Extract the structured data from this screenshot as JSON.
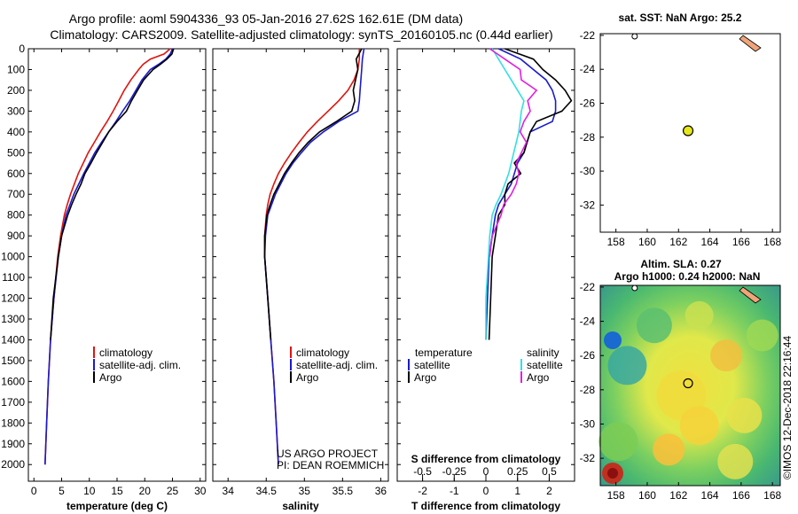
{
  "title_line1": "Argo profile: aoml 5904336_93 05-Jan-2016 27.62S 162.61E (DM data)",
  "title_line2": "Climatology: CARS2009. Satellite-adjusted climatology: synTS_20160105.nc (0.44d earlier)",
  "credit_line1": "US ARGO PROJECT",
  "credit_line2": "PI: DEAN ROEMMICH",
  "imos_label": "©IMOS 12-Dec-2018 22:16:44",
  "colors": {
    "climatology": "#e0140f",
    "satellite": "#1a1acc",
    "argo": "#000000",
    "cyan": "#33e0e0",
    "magenta": "#e020e0",
    "land": "#f0a47a",
    "marker": "#e6e61a"
  },
  "legend_tsal": [
    {
      "key": "climatology",
      "label": "climatology"
    },
    {
      "key": "satellite",
      "label": "satellite-adj. clim."
    },
    {
      "key": "argo",
      "label": "Argo"
    }
  ],
  "legend_diff": {
    "temp_heading": "temperature",
    "sal_heading": "salinity",
    "temp_items": [
      {
        "key": "satellite",
        "label": "satellite"
      },
      {
        "key": "argo",
        "label": "Argo"
      }
    ],
    "sal_items": [
      {
        "key": "cyan",
        "label": "satellite"
      },
      {
        "key": "magenta",
        "label": "Argo"
      }
    ]
  },
  "map_sst": {
    "title": "sat. SST: NaN Argo: 25.2",
    "lon_ticks": [
      158,
      160,
      162,
      164,
      166,
      168
    ],
    "lat_ticks": [
      -22,
      -24,
      -26,
      -28,
      -30,
      -32
    ],
    "profile_lon": 162.61,
    "profile_lat": -27.62
  },
  "map_sla": {
    "title_line1": "Altim. SLA: 0.27",
    "title_line2": "Argo h1000: 0.24 h2000: NaN",
    "lon_ticks": [
      158,
      160,
      162,
      164,
      166,
      168
    ],
    "lat_ticks": [
      -22,
      -24,
      -26,
      -28,
      -30,
      -32
    ],
    "profile_lon": 162.61,
    "profile_lat": -27.62
  },
  "chart_data": [
    {
      "type": "line",
      "xlabel": "temperature (deg C)",
      "ylabel": "",
      "xlim": [
        -1,
        31
      ],
      "ylim": [
        2080,
        0
      ],
      "xticks": [
        0,
        5,
        10,
        15,
        20,
        25,
        30
      ],
      "yticks": [
        0,
        100,
        200,
        300,
        400,
        500,
        600,
        700,
        800,
        900,
        1000,
        1100,
        1200,
        1300,
        1400,
        1500,
        1600,
        1700,
        1800,
        1900,
        2000
      ],
      "series": [
        {
          "name": "climatology",
          "color_key": "climatology",
          "depth": [
            0,
            25,
            50,
            75,
            100,
            150,
            200,
            250,
            300,
            350,
            400,
            450,
            500,
            550,
            600,
            650,
            700,
            750,
            800,
            900,
            1000,
            1200,
            1400,
            1600,
            1800,
            2000
          ],
          "values": [
            24.6,
            23.5,
            21.0,
            19.7,
            18.9,
            17.5,
            16.3,
            15.3,
            14.3,
            13.2,
            12.0,
            10.9,
            9.8,
            8.9,
            8.0,
            7.3,
            6.6,
            6.0,
            5.5,
            4.8,
            4.3,
            3.6,
            3.0,
            2.6,
            2.3,
            2.0
          ]
        },
        {
          "name": "satellite-adj. clim.",
          "color_key": "satellite",
          "depth": [
            0,
            25,
            50,
            75,
            100,
            150,
            200,
            250,
            300,
            350,
            400,
            450,
            500,
            550,
            600,
            650,
            700,
            750,
            800,
            900,
            1000,
            1200,
            1400,
            1600,
            1800,
            2000
          ],
          "values": [
            25.0,
            24.6,
            23.8,
            22.5,
            21.0,
            19.5,
            18.4,
            17.3,
            16.0,
            14.8,
            13.5,
            12.2,
            11.0,
            10.0,
            9.0,
            8.1,
            7.2,
            6.5,
            5.8,
            5.0,
            4.4,
            3.6,
            3.0,
            2.6,
            2.3,
            2.0
          ]
        },
        {
          "name": "Argo",
          "color_key": "argo",
          "depth": [
            0,
            25,
            50,
            75,
            100,
            150,
            200,
            250,
            300,
            350,
            400,
            450,
            500,
            550,
            600,
            650,
            700,
            750,
            800,
            900,
            1000,
            1200,
            1400
          ],
          "values": [
            25.2,
            24.9,
            24.0,
            22.8,
            21.5,
            19.8,
            18.7,
            17.6,
            16.7,
            15.0,
            13.5,
            12.4,
            11.3,
            10.3,
            9.2,
            8.5,
            7.6,
            6.8,
            6.1,
            5.0,
            4.4,
            3.5,
            3.0
          ]
        }
      ]
    },
    {
      "type": "line",
      "xlabel": "salinity",
      "ylabel": "",
      "xlim": [
        33.8,
        36.1
      ],
      "ylim": [
        2080,
        0
      ],
      "xticks": [
        34,
        34.5,
        35,
        35.5,
        36
      ],
      "series": [
        {
          "name": "climatology",
          "color_key": "climatology",
          "depth": [
            0,
            50,
            100,
            150,
            200,
            250,
            300,
            350,
            400,
            450,
            500,
            550,
            600,
            650,
            700,
            750,
            800,
            900,
            1000,
            1200,
            1400,
            1600,
            1800,
            2000
          ],
          "values": [
            35.72,
            35.72,
            35.7,
            35.65,
            35.57,
            35.45,
            35.31,
            35.17,
            35.04,
            34.93,
            34.83,
            34.74,
            34.66,
            34.6,
            34.55,
            34.52,
            34.5,
            34.48,
            34.48,
            34.52,
            34.56,
            34.6,
            34.63,
            34.66
          ]
        },
        {
          "name": "satellite-adj. clim.",
          "color_key": "satellite",
          "depth": [
            0,
            50,
            100,
            150,
            200,
            250,
            300,
            350,
            400,
            450,
            500,
            550,
            600,
            650,
            700,
            750,
            800,
            900,
            1000,
            1200,
            1400,
            1600,
            1800,
            2000
          ],
          "values": [
            35.78,
            35.76,
            35.75,
            35.74,
            35.73,
            35.72,
            35.7,
            35.45,
            35.25,
            35.08,
            34.96,
            34.85,
            34.76,
            34.69,
            34.62,
            34.57,
            34.52,
            34.49,
            34.48,
            34.52,
            34.56,
            34.6,
            34.63,
            34.66
          ]
        },
        {
          "name": "Argo",
          "color_key": "argo",
          "depth": [
            0,
            50,
            100,
            150,
            200,
            250,
            300,
            350,
            400,
            450,
            500,
            550,
            600,
            650,
            700,
            750,
            800,
            900,
            1000,
            1200,
            1400
          ],
          "values": [
            35.75,
            35.68,
            35.7,
            35.67,
            35.64,
            35.66,
            35.62,
            35.42,
            35.2,
            35.05,
            34.93,
            34.83,
            34.74,
            34.67,
            34.6,
            34.55,
            34.51,
            34.48,
            34.48,
            34.52,
            34.56
          ]
        }
      ]
    },
    {
      "type": "line",
      "xlabel": "T difference from climatology",
      "x2label": "S difference from climatology",
      "xlim": [
        -2.8,
        2.8
      ],
      "ylim": [
        2080,
        0
      ],
      "xticks": [
        -2,
        -1,
        0,
        1,
        2
      ],
      "x2ticks": [
        -0.5,
        -0.25,
        0,
        0.25,
        0.5
      ],
      "x2tick_labels": [
        "-0.5",
        "-0.25",
        "0",
        "0.25",
        "0.5"
      ],
      "series": [
        {
          "name": "temperature satellite",
          "color_key": "satellite",
          "depth": [
            0,
            50,
            100,
            150,
            200,
            250,
            300,
            350,
            400,
            450,
            500,
            550,
            600,
            650,
            700,
            750,
            800,
            900,
            1000,
            1200,
            1400
          ],
          "values": [
            0.4,
            1.1,
            1.5,
            1.9,
            2.1,
            2.2,
            2.2,
            2.1,
            1.4,
            1.3,
            1.2,
            1.0,
            0.9,
            0.8,
            0.6,
            0.4,
            0.3,
            0.2,
            0.1,
            0.05,
            0.0
          ]
        },
        {
          "name": "temperature Argo",
          "color_key": "argo",
          "depth": [
            0,
            50,
            100,
            150,
            200,
            250,
            300,
            350,
            400,
            450,
            500,
            550,
            600,
            650,
            700,
            750,
            800,
            900,
            1000,
            1200,
            1400
          ],
          "values": [
            0.6,
            1.5,
            1.8,
            2.2,
            2.5,
            2.7,
            2.4,
            1.6,
            1.4,
            1.3,
            1.2,
            0.9,
            1.1,
            0.7,
            0.6,
            0.6,
            0.4,
            0.3,
            0.2,
            0.15,
            0.1
          ]
        },
        {
          "name": "salinity satellite",
          "color_key": "cyan",
          "depth": [
            0,
            50,
            100,
            150,
            200,
            250,
            300,
            350,
            400,
            450,
            500,
            550,
            600,
            650,
            700,
            750,
            800,
            900,
            1000,
            1200,
            1400
          ],
          "values": [
            0.05,
            0.1,
            0.15,
            0.2,
            0.25,
            0.3,
            0.28,
            0.27,
            0.26,
            0.24,
            0.22,
            0.2,
            0.18,
            0.15,
            0.12,
            0.08,
            0.05,
            0.03,
            0.02,
            0.0,
            0.0
          ]
        },
        {
          "name": "salinity Argo",
          "color_key": "magenta",
          "depth": [
            0,
            50,
            100,
            150,
            200,
            250,
            300,
            350,
            400,
            450,
            500,
            550,
            600,
            650,
            700,
            750,
            800,
            900,
            1000
          ],
          "values": [
            0.03,
            0.15,
            0.27,
            0.28,
            0.4,
            0.33,
            0.35,
            0.3,
            0.27,
            0.32,
            0.28,
            0.24,
            0.26,
            0.24,
            0.2,
            0.14,
            0.12,
            0.05,
            0.03
          ]
        }
      ]
    }
  ]
}
